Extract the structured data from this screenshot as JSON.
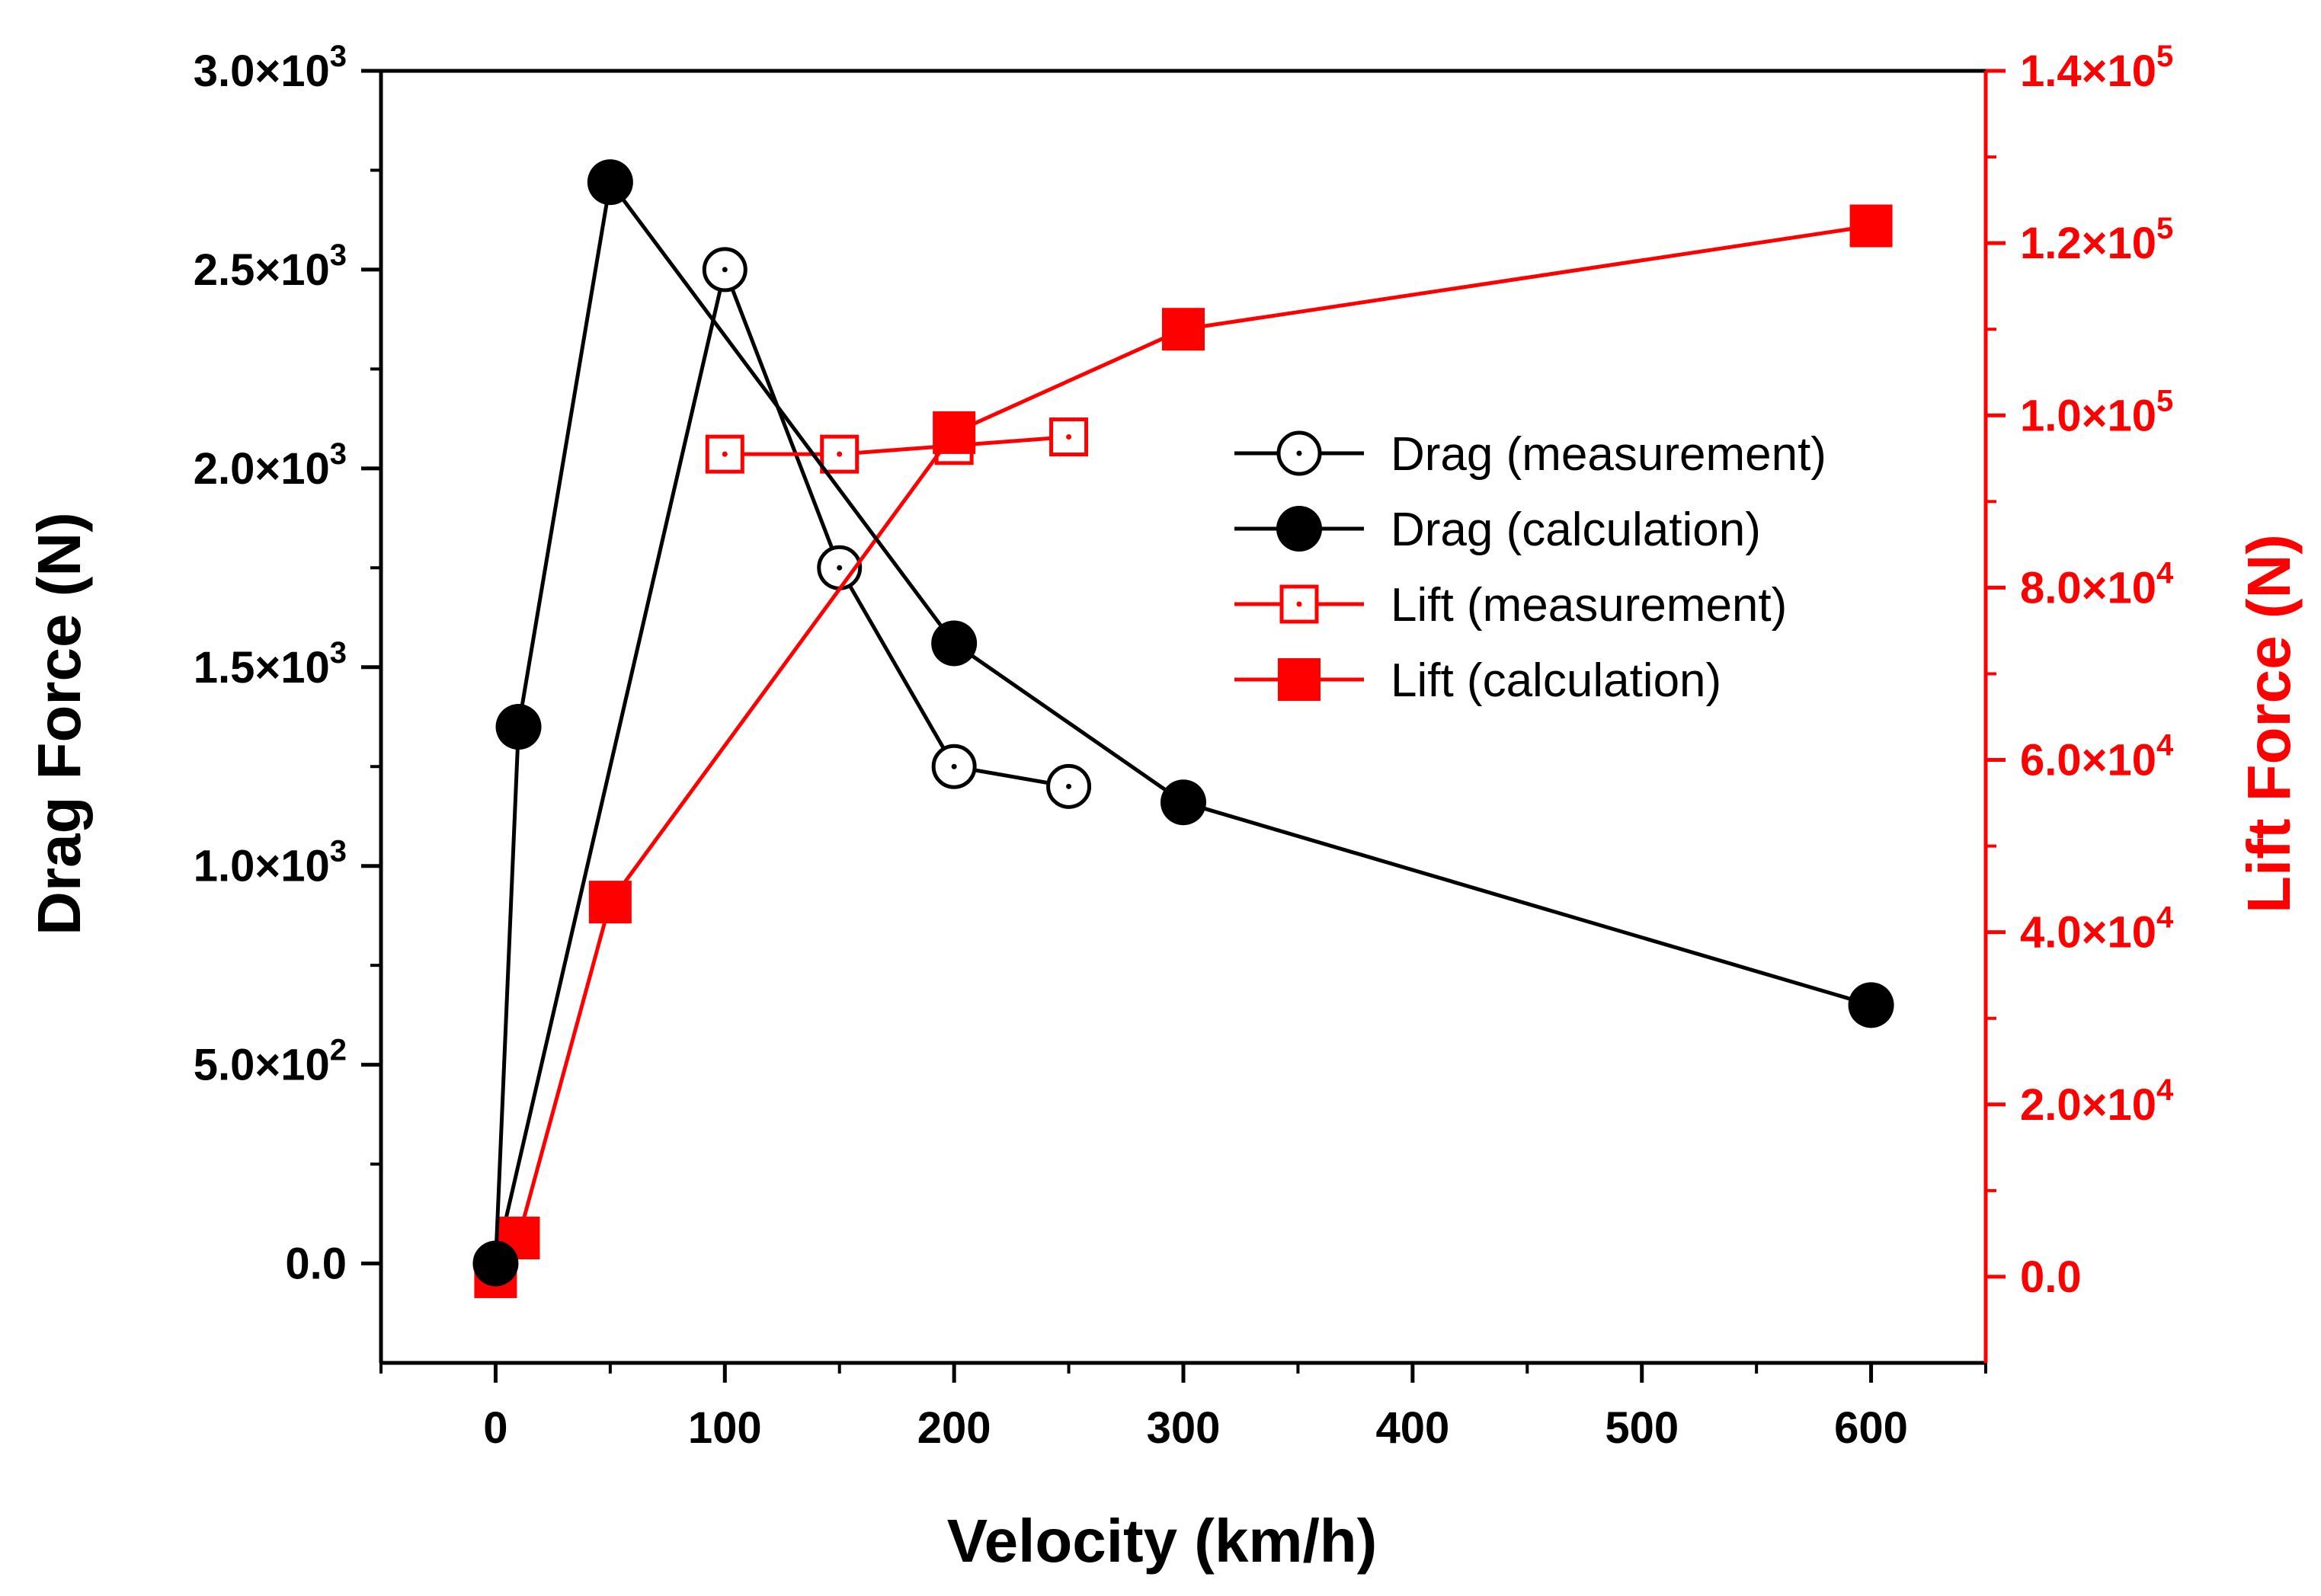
{
  "chart_data": {
    "type": "line",
    "xlabel": "Velocity (km/h)",
    "ylabel": "Drag Force (N)",
    "y2label": "Lift Force (N)",
    "xlim": [
      -50,
      650
    ],
    "ylim": [
      -250,
      3000
    ],
    "y2lim": [
      -10000,
      140000
    ],
    "x_ticks": [
      0,
      100,
      200,
      300,
      400,
      500,
      600
    ],
    "x_tick_labels": [
      "0",
      "100",
      "200",
      "300",
      "400",
      "500",
      "600"
    ],
    "y_ticks": [
      0,
      500,
      1000,
      1500,
      2000,
      2500,
      3000
    ],
    "y_tick_labels": [
      {
        "mant": "0.0",
        "exp": ""
      },
      {
        "mant": "5.0×10",
        "exp": "2"
      },
      {
        "mant": "1.0×10",
        "exp": "3"
      },
      {
        "mant": "1.5×10",
        "exp": "3"
      },
      {
        "mant": "2.0×10",
        "exp": "3"
      },
      {
        "mant": "2.5×10",
        "exp": "3"
      },
      {
        "mant": "3.0×10",
        "exp": "3"
      }
    ],
    "y2_ticks": [
      0,
      20000,
      40000,
      60000,
      80000,
      100000,
      120000,
      140000
    ],
    "y2_tick_labels": [
      {
        "mant": "0.0",
        "exp": ""
      },
      {
        "mant": "2.0×10",
        "exp": "4"
      },
      {
        "mant": "4.0×10",
        "exp": "4"
      },
      {
        "mant": "6.0×10",
        "exp": "4"
      },
      {
        "mant": "8.0×10",
        "exp": "4"
      },
      {
        "mant": "1.0×10",
        "exp": "5"
      },
      {
        "mant": "1.2×10",
        "exp": "5"
      },
      {
        "mant": "1.4×10",
        "exp": "5"
      }
    ],
    "grid": false,
    "legend_position": "upper-right-inside",
    "series": [
      {
        "name": "Drag (measurement)",
        "axis": "left",
        "marker": "open-circle-dot",
        "color": "#000000",
        "x": [
          0,
          100,
          150,
          200,
          250
        ],
        "y": [
          0,
          2500,
          1750,
          1250,
          1200
        ]
      },
      {
        "name": "Drag (calculation)",
        "axis": "left",
        "marker": "filled-circle",
        "color": "#000000",
        "x": [
          0,
          10,
          50,
          200,
          300,
          600
        ],
        "y": [
          0,
          1350,
          2720,
          1560,
          1160,
          650
        ]
      },
      {
        "name": "Lift (measurement)",
        "axis": "right",
        "marker": "open-square-dot",
        "color": "#ff0000",
        "x": [
          100,
          150,
          200,
          250
        ],
        "y": [
          95500,
          95500,
          96500,
          97500
        ]
      },
      {
        "name": "Lift (calculation)",
        "axis": "right",
        "marker": "filled-square",
        "color": "#ff0000",
        "x": [
          0,
          10,
          50,
          200,
          300,
          600
        ],
        "y": [
          0,
          4500,
          43500,
          98000,
          110000,
          122000
        ]
      }
    ]
  }
}
